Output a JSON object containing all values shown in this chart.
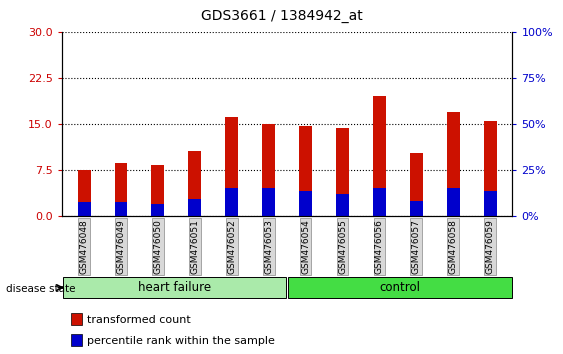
{
  "title": "GDS3661 / 1384942_at",
  "samples": [
    "GSM476048",
    "GSM476049",
    "GSM476050",
    "GSM476051",
    "GSM476052",
    "GSM476053",
    "GSM476054",
    "GSM476055",
    "GSM476056",
    "GSM476057",
    "GSM476058",
    "GSM476059"
  ],
  "transformed_count": [
    7.5,
    8.6,
    8.3,
    10.6,
    16.2,
    15.0,
    14.6,
    14.4,
    19.5,
    10.3,
    17.0,
    15.5
  ],
  "percentile_rank_left": [
    2.2,
    2.2,
    2.0,
    2.8,
    4.5,
    4.5,
    4.0,
    3.5,
    4.5,
    2.5,
    4.5,
    4.0
  ],
  "groups": [
    {
      "label": "heart failure",
      "start": 0,
      "end": 6,
      "color": "#AAEAAA"
    },
    {
      "label": "control",
      "start": 6,
      "end": 12,
      "color": "#44DD44"
    }
  ],
  "y_left_ticks": [
    0,
    7.5,
    15,
    22.5,
    30
  ],
  "y_right_ticks": [
    0,
    25,
    50,
    75,
    100
  ],
  "y_left_label_color": "#CC0000",
  "y_right_label_color": "#0000CC",
  "bar_color_red": "#CC1100",
  "bar_color_blue": "#0000CC",
  "plot_bg_color": "#FFFFFF",
  "bar_width": 0.35,
  "disease_state_label": "disease state",
  "legend_items": [
    {
      "color": "#CC1100",
      "label": "transformed count"
    },
    {
      "color": "#0000CC",
      "label": "percentile rank within the sample"
    }
  ]
}
